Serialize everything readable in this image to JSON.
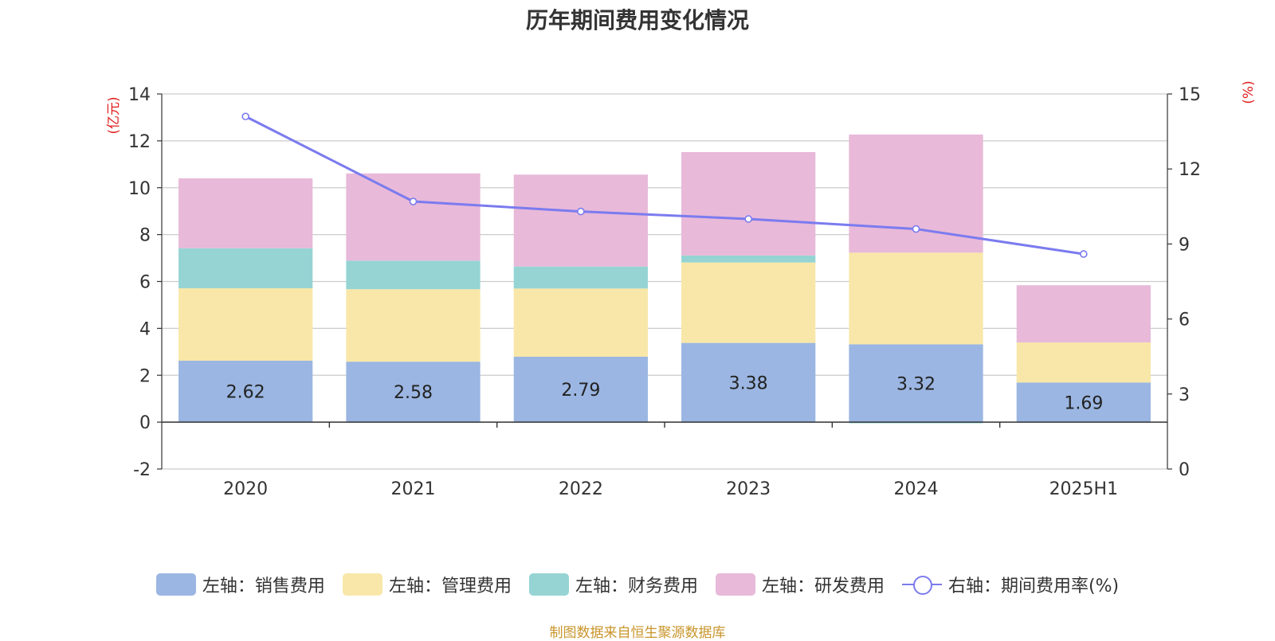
{
  "chart_data": {
    "type": "bar",
    "title": "历年期间费用变化情况",
    "categories": [
      "2020",
      "2021",
      "2022",
      "2023",
      "2024",
      "2025H1"
    ],
    "left_axis": {
      "unit_label": "(亿元)",
      "range": [
        -2,
        14
      ],
      "ticks": [
        "14",
        "12",
        "10",
        "8",
        "6",
        "4",
        "2",
        "0",
        "-2"
      ]
    },
    "right_axis": {
      "unit_label": "(%)",
      "range": [
        0,
        15
      ],
      "ticks": [
        "15",
        "12",
        "9",
        "6",
        "3",
        "0"
      ]
    },
    "series": [
      {
        "name": "左轴：销售费用",
        "color": "#9bb6e2",
        "values": [
          2.62,
          2.58,
          2.79,
          3.38,
          3.32,
          1.69
        ],
        "labels": [
          "2.62",
          "2.58",
          "2.79",
          "3.38",
          "3.32",
          "1.69"
        ]
      },
      {
        "name": "左轴：管理费用",
        "color": "#f8e7a8",
        "values": [
          3.09,
          3.09,
          2.91,
          3.43,
          3.91,
          1.71
        ]
      },
      {
        "name": "左轴：财务费用",
        "color": "#96d4d4",
        "values": [
          1.71,
          1.22,
          0.94,
          0.3,
          -0.05,
          0.0
        ]
      },
      {
        "name": "左轴：研发费用",
        "color": "#e8b9d9",
        "values": [
          2.98,
          3.72,
          3.92,
          4.41,
          5.04,
          2.44
        ]
      }
    ],
    "line_series": {
      "name": "右轴：期间费用率(%)",
      "color": "#7b7bef",
      "values": [
        14.1,
        10.7,
        10.3,
        10.0,
        9.6,
        8.6
      ]
    },
    "grid": true,
    "legend_position": "bottom"
  },
  "source_note": "制图数据来自恒生聚源数据库"
}
